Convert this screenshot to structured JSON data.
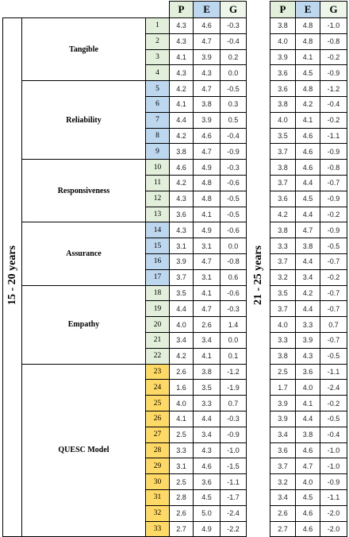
{
  "dimensions": [
    {
      "label": "Tangible",
      "items": [
        "1",
        "2",
        "3",
        "4"
      ]
    },
    {
      "label": "Reliability",
      "items": [
        "5",
        "6",
        "7",
        "8",
        "9"
      ]
    },
    {
      "label": "Responsiveness",
      "items": [
        "10",
        "11",
        "12",
        "13"
      ]
    },
    {
      "label": "Assurance",
      "items": [
        "14",
        "15",
        "16",
        "17"
      ]
    },
    {
      "label": "Empathy",
      "items": [
        "18",
        "19",
        "20",
        "21",
        "22"
      ]
    },
    {
      "label": "QUESC Model",
      "items": [
        "23",
        "24",
        "25",
        "26",
        "27",
        "28",
        "29",
        "30",
        "31",
        "32",
        "33"
      ]
    }
  ],
  "groups": [
    {
      "label": "15 - 20 years",
      "columns": [
        "P",
        "E",
        "G"
      ],
      "rows": [
        [
          "4.3",
          "4.6",
          "-0.3"
        ],
        [
          "4.3",
          "4.7",
          "-0.4"
        ],
        [
          "4.1",
          "3.9",
          "0.2"
        ],
        [
          "4.3",
          "4.3",
          "0.0"
        ],
        [
          "4.2",
          "4.7",
          "-0.5"
        ],
        [
          "4.1",
          "3.8",
          "0.3"
        ],
        [
          "4.4",
          "3.9",
          "0.5"
        ],
        [
          "4.2",
          "4.6",
          "-0.4"
        ],
        [
          "3.8",
          "4.7",
          "-0.9"
        ],
        [
          "4.6",
          "4.9",
          "-0.3"
        ],
        [
          "4.2",
          "4.8",
          "-0.6"
        ],
        [
          "4.3",
          "4.8",
          "-0.5"
        ],
        [
          "3.6",
          "4.1",
          "-0.5"
        ],
        [
          "4.3",
          "4.9",
          "-0.6"
        ],
        [
          "3.1",
          "3.1",
          "0.0"
        ],
        [
          "3.9",
          "4.7",
          "-0.8"
        ],
        [
          "3.7",
          "3.1",
          "0.6"
        ],
        [
          "3.5",
          "4.1",
          "-0.6"
        ],
        [
          "4.4",
          "4.7",
          "-0.3"
        ],
        [
          "4.0",
          "2.6",
          "1.4"
        ],
        [
          "3.4",
          "3.4",
          "0.0"
        ],
        [
          "4.2",
          "4.1",
          "0.1"
        ],
        [
          "2.6",
          "3.8",
          "-1.2"
        ],
        [
          "1.6",
          "3.5",
          "-1.9"
        ],
        [
          "4.0",
          "3.3",
          "0.7"
        ],
        [
          "4.1",
          "4.4",
          "-0.3"
        ],
        [
          "2.5",
          "3.4",
          "-0.9"
        ],
        [
          "3.3",
          "4.3",
          "-1.0"
        ],
        [
          "3.1",
          "4.6",
          "-1.5"
        ],
        [
          "2.5",
          "3.6",
          "-1.1"
        ],
        [
          "2.8",
          "4.5",
          "-1.7"
        ],
        [
          "2.6",
          "5.0",
          "-2.4"
        ],
        [
          "2.7",
          "4.9",
          "-2.2"
        ]
      ]
    },
    {
      "label": "21 - 25 years",
      "columns": [
        "P",
        "E",
        "G"
      ],
      "rows": [
        [
          "3.8",
          "4.8",
          "-1.0"
        ],
        [
          "4.0",
          "4.8",
          "-0.8"
        ],
        [
          "3.9",
          "4.1",
          "-0.2"
        ],
        [
          "3.6",
          "4.5",
          "-0.9"
        ],
        [
          "3.6",
          "4.8",
          "-1.2"
        ],
        [
          "3.8",
          "4.2",
          "-0.4"
        ],
        [
          "4.0",
          "4.1",
          "-0.2"
        ],
        [
          "3.5",
          "4.6",
          "-1.1"
        ],
        [
          "3.7",
          "4.6",
          "-0.9"
        ],
        [
          "3.8",
          "4.6",
          "-0.8"
        ],
        [
          "3.7",
          "4.4",
          "-0.7"
        ],
        [
          "3.6",
          "4.5",
          "-0.9"
        ],
        [
          "4.2",
          "4.4",
          "-0.2"
        ],
        [
          "3.8",
          "4.7",
          "-0.9"
        ],
        [
          "3.3",
          "3.8",
          "-0.5"
        ],
        [
          "3.7",
          "4.4",
          "-0.7"
        ],
        [
          "3.2",
          "3.4",
          "-0.2"
        ],
        [
          "3.5",
          "4.2",
          "-0.7"
        ],
        [
          "3.7",
          "4.4",
          "-0.7"
        ],
        [
          "4.0",
          "3.3",
          "0.7"
        ],
        [
          "3.3",
          "3.9",
          "-0.7"
        ],
        [
          "3.8",
          "4.3",
          "-0.5"
        ],
        [
          "2.5",
          "3.6",
          "-1.1"
        ],
        [
          "1.7",
          "4.0",
          "-2.4"
        ],
        [
          "3.9",
          "4.1",
          "-0.2"
        ],
        [
          "3.9",
          "4.4",
          "-0.5"
        ],
        [
          "3.4",
          "3.8",
          "-0.4"
        ],
        [
          "3.6",
          "4.6",
          "-1.0"
        ],
        [
          "3.7",
          "4.7",
          "-1.0"
        ],
        [
          "3.2",
          "4.0",
          "-0.9"
        ],
        [
          "3.4",
          "4.5",
          "-1.1"
        ],
        [
          "2.6",
          "4.6",
          "-2.0"
        ],
        [
          "2.7",
          "4.6",
          "-2.0"
        ]
      ]
    }
  ]
}
